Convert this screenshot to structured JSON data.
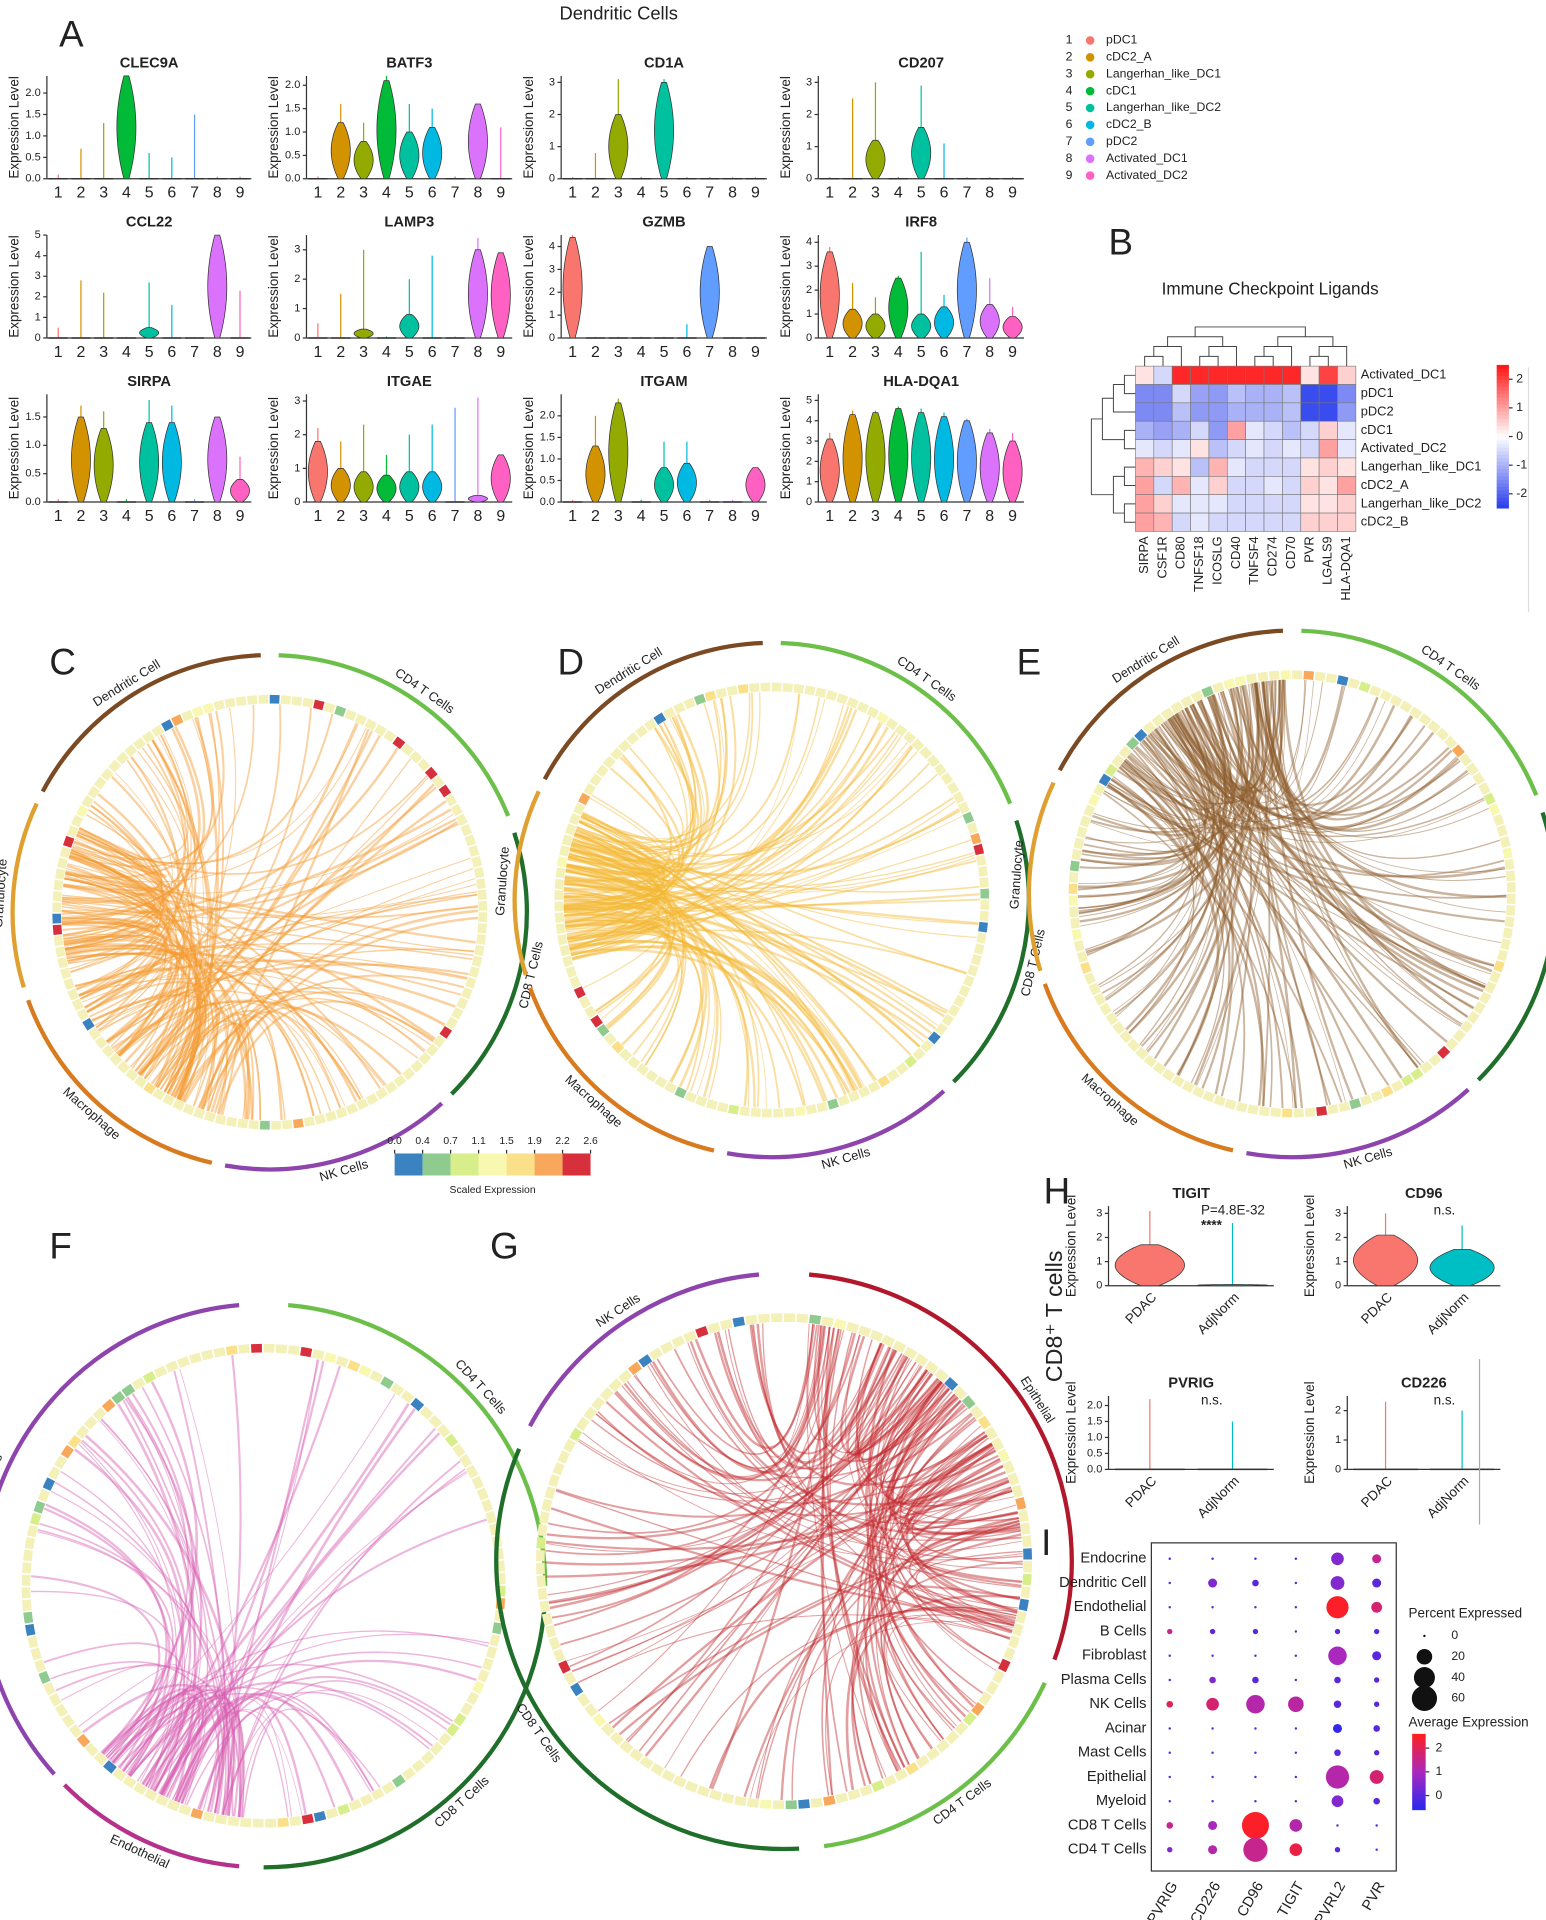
{
  "A": {
    "letter": "A",
    "title": "Dendritic Cells",
    "y_label": "Expression Level",
    "clusters": [
      "1",
      "2",
      "3",
      "4",
      "5",
      "6",
      "7",
      "8",
      "9"
    ],
    "legend": {
      "names": [
        "pDC1",
        "cDC2_A",
        "Langerhan_like_DC1",
        "cDC1",
        "Langerhan_like_DC2",
        "cDC2_B",
        "pDC2",
        "Activated_DC1",
        "Activated_DC2"
      ],
      "colors": [
        "#F8766D",
        "#D39200",
        "#93AA00",
        "#00BA38",
        "#00C19F",
        "#00B9E3",
        "#619CFF",
        "#DB72FB",
        "#FF61C3"
      ]
    },
    "genes": [
      {
        "name": "CLEC9A",
        "ylim": [
          0,
          2.4
        ],
        "yticks": [
          {
            "value": 0,
            "label": "0.0"
          },
          0.5,
          {
            "value": 1,
            "label": "1.0"
          },
          1.5,
          {
            "value": 2,
            "label": "2.0"
          }
        ],
        "max": [
          0.1,
          0.7,
          1.3,
          2.4,
          0.6,
          0.5,
          1.5,
          0.05,
          0.05
        ],
        "body": [
          0,
          0,
          0,
          2.4,
          0,
          0,
          0,
          0,
          0
        ]
      },
      {
        "name": "BATF3",
        "ylim": [
          0,
          2.2
        ],
        "yticks": [
          {
            "value": 0,
            "label": "0.0"
          },
          0.5,
          {
            "value": 1,
            "label": "1.0"
          },
          1.5,
          {
            "value": 2,
            "label": "2.0"
          }
        ],
        "max": [
          0.05,
          1.6,
          1.2,
          2.2,
          1.6,
          1.5,
          0.05,
          1.6,
          1.1
        ],
        "body": [
          0,
          1.2,
          0.8,
          2.1,
          1.0,
          1.1,
          0,
          1.6,
          0
        ]
      },
      {
        "name": "CD1A",
        "ylim": [
          0,
          3.2
        ],
        "yticks": [
          0,
          1,
          2,
          3
        ],
        "max": [
          0.05,
          0.8,
          3.1,
          0.05,
          3.1,
          0.05,
          0.05,
          0.05,
          0.05
        ],
        "body": [
          0,
          0,
          2.0,
          0,
          3.0,
          0,
          0,
          0,
          0
        ]
      },
      {
        "name": "CD207",
        "ylim": [
          0,
          3.2
        ],
        "yticks": [
          0,
          1,
          2,
          3
        ],
        "max": [
          0.05,
          2.5,
          3.0,
          0.05,
          2.9,
          1.1,
          0.05,
          0.05,
          0.05
        ],
        "body": [
          0,
          0,
          1.2,
          0,
          1.6,
          0,
          0,
          0,
          0
        ]
      },
      {
        "name": "CCL22",
        "ylim": [
          0,
          5
        ],
        "yticks": [
          0,
          1,
          2,
          3,
          4,
          5
        ],
        "max": [
          0.5,
          2.8,
          2.2,
          0.05,
          2.7,
          1.6,
          0.05,
          5,
          2.3
        ],
        "body": [
          0,
          0,
          0,
          0,
          0.5,
          0,
          0,
          5,
          0
        ]
      },
      {
        "name": "LAMP3",
        "ylim": [
          0,
          3.5
        ],
        "yticks": [
          0,
          1,
          2,
          3
        ],
        "max": [
          0.5,
          1.5,
          3.0,
          0.05,
          2.0,
          2.8,
          0.05,
          3.4,
          2.9
        ],
        "body": [
          0,
          0,
          0.3,
          0,
          0.8,
          0,
          0,
          3.0,
          2.9
        ]
      },
      {
        "name": "GZMB",
        "ylim": [
          0,
          4.5
        ],
        "yticks": [
          0,
          1,
          2,
          3,
          4
        ],
        "max": [
          4.5,
          0.05,
          0.05,
          0.05,
          0.05,
          0.6,
          4.0,
          0.05,
          0.05
        ],
        "body": [
          4.4,
          0,
          0,
          0,
          0,
          0,
          4.0,
          0,
          0
        ]
      },
      {
        "name": "IRF8",
        "ylim": [
          0,
          4.3
        ],
        "yticks": [
          0,
          1,
          2,
          3,
          4
        ],
        "max": [
          3.8,
          2.3,
          1.7,
          2.6,
          3.6,
          1.8,
          4.2,
          2.5,
          1.3
        ],
        "body": [
          3.6,
          1.2,
          1.0,
          2.5,
          1.0,
          1.3,
          4.0,
          1.4,
          0.9
        ]
      },
      {
        "name": "SIRPA",
        "ylim": [
          0,
          1.9
        ],
        "yticks": [
          {
            "value": 0,
            "label": "0.0"
          },
          0.5,
          {
            "value": 1,
            "label": "1.0"
          },
          1.5
        ],
        "max": [
          0.05,
          1.7,
          1.6,
          0.05,
          1.8,
          1.7,
          0.05,
          1.5,
          0.8
        ],
        "body": [
          0,
          1.5,
          1.3,
          0,
          1.4,
          1.4,
          0,
          1.5,
          0.4
        ]
      },
      {
        "name": "ITGAE",
        "ylim": [
          0,
          3.2
        ],
        "yticks": [
          0,
          1,
          2,
          3
        ],
        "max": [
          2.2,
          1.8,
          2.3,
          1.4,
          2.0,
          2.3,
          2.8,
          3.1,
          1.4
        ],
        "body": [
          1.8,
          1.0,
          0.9,
          0.8,
          0.9,
          0.9,
          0,
          0.2,
          1.4
        ]
      },
      {
        "name": "ITGAM",
        "ylim": [
          0,
          2.5
        ],
        "yticks": [
          {
            "value": 0,
            "label": "0.0"
          },
          0.5,
          {
            "value": 1,
            "label": "1.0"
          },
          1.5,
          {
            "value": 2,
            "label": "2.0"
          }
        ],
        "max": [
          0.05,
          2.0,
          2.4,
          0.05,
          1.4,
          1.4,
          0.05,
          0.05,
          0.8
        ],
        "body": [
          0,
          1.3,
          2.3,
          0,
          0.8,
          0.9,
          0,
          0,
          0.8
        ]
      },
      {
        "name": "HLA-DQA1",
        "ylim": [
          0,
          5.3
        ],
        "yticks": [
          0,
          1,
          2,
          3,
          4,
          5
        ],
        "max": [
          3.4,
          4.5,
          4.5,
          4.7,
          4.6,
          4.4,
          4.1,
          3.6,
          3.4
        ],
        "body": [
          3.1,
          4.3,
          4.4,
          4.6,
          4.4,
          4.2,
          4.0,
          3.4,
          3.0
        ]
      }
    ]
  },
  "B": {
    "letter": "B",
    "title": "Immune Checkpoint Ligands",
    "rows": [
      "Activated_DC1",
      "pDC1",
      "pDC2",
      "cDC1",
      "Activated_DC2",
      "Langerhan_like_DC1",
      "cDC2_A",
      "Langerhan_like_DC2",
      "cDC2_B"
    ],
    "cols": [
      "SIRPA",
      "CSF1R",
      "CD80",
      "TNFSF18",
      "ICOSLG",
      "CD40",
      "TNFSF4",
      "CD274",
      "CD70",
      "PVR",
      "LGALS9",
      "HLA-DQA1"
    ],
    "values": [
      [
        0.3,
        -0.5,
        2.3,
        2.3,
        2.3,
        2.3,
        2.3,
        2.3,
        2.3,
        0.3,
        2.0,
        0.5
      ],
      [
        -1.5,
        -1.5,
        -0.5,
        -1.2,
        -1.3,
        -0.8,
        -1.0,
        -1.0,
        -0.8,
        -2.3,
        -2.3,
        -1.5
      ],
      [
        -1.5,
        -1.5,
        -0.8,
        -1.3,
        -1.3,
        -1.0,
        -1.0,
        -1.0,
        -0.8,
        -2.3,
        -2.3,
        -1.3
      ],
      [
        -1.0,
        -1.2,
        -1.0,
        -0.5,
        -1.3,
        1.0,
        -0.3,
        -0.5,
        -0.8,
        -0.5,
        0.5,
        -0.3
      ],
      [
        -0.3,
        -0.5,
        -0.3,
        0.3,
        -0.8,
        -0.5,
        -0.3,
        -0.5,
        -0.3,
        -0.5,
        1.0,
        -0.3
      ],
      [
        0.8,
        0.5,
        0.3,
        -0.8,
        0.8,
        -0.3,
        -0.5,
        -0.5,
        -0.5,
        0.3,
        0.5,
        0.3
      ],
      [
        1.0,
        -0.5,
        0.8,
        -0.3,
        0.5,
        -0.5,
        -0.5,
        -0.3,
        -0.5,
        0.5,
        0.3,
        1.0
      ],
      [
        1.0,
        0.5,
        -0.3,
        -0.3,
        -0.3,
        -0.5,
        -0.5,
        -0.5,
        -0.5,
        0.3,
        0.3,
        0.5
      ],
      [
        1.0,
        0.8,
        -0.5,
        -0.3,
        -0.5,
        -0.5,
        -0.5,
        -0.5,
        -0.5,
        0.5,
        0.5,
        0.5
      ]
    ],
    "range": [
      -2.5,
      2.5
    ],
    "ticks": [
      2,
      1,
      0,
      -1,
      -2
    ]
  },
  "chords": [
    {
      "letter": "C",
      "link_color": "#F39A2E",
      "segments": [
        {
          "name": "Dendritic Cell",
          "color": "#7B4A23"
        },
        {
          "name": "CD4 T Cells",
          "color": "#6CC04A"
        },
        {
          "name": "CD8 T Cells",
          "color": "#1F6E2A"
        },
        {
          "name": "NK Cells",
          "color": "#8E44AD"
        },
        {
          "name": "Macrophage",
          "color": "#D97A1E"
        },
        {
          "name": "Granulocyte",
          "color": "#E0A030"
        }
      ]
    },
    {
      "letter": "D",
      "link_color": "#F5B934",
      "segments": [
        {
          "name": "Dendritic Cell",
          "color": "#7B4A23"
        },
        {
          "name": "CD4 T Cells",
          "color": "#6CC04A"
        },
        {
          "name": "CD8 T Cells",
          "color": "#1F6E2A"
        },
        {
          "name": "NK Cells",
          "color": "#8E44AD"
        },
        {
          "name": "Macrophage",
          "color": "#D97A1E"
        },
        {
          "name": "Granulocyte",
          "color": "#E0A030"
        }
      ]
    },
    {
      "letter": "E",
      "link_color": "#8B5A2B",
      "segments": [
        {
          "name": "Dendritic Cell",
          "color": "#7B4A23"
        },
        {
          "name": "CD4 T Cells",
          "color": "#6CC04A"
        },
        {
          "name": "CD8 T Cells",
          "color": "#1F6E2A"
        },
        {
          "name": "NK Cells",
          "color": "#8E44AD"
        },
        {
          "name": "Macrophage",
          "color": "#D97A1E"
        },
        {
          "name": "Granulocyte",
          "color": "#E0A030"
        }
      ]
    },
    {
      "letter": "F",
      "link_color": "#D65DB1",
      "segments": [
        {
          "name": "NK Cells",
          "color": "#8E44AD"
        },
        {
          "name": "CD4 T Cells",
          "color": "#6CC04A"
        },
        {
          "name": "CD8 T Cells",
          "color": "#1F6E2A"
        },
        {
          "name": "Endothelial",
          "color": "#B5318C"
        }
      ]
    },
    {
      "letter": "G",
      "link_color": "#C0282D",
      "segments": [
        {
          "name": "NK Cells",
          "color": "#8E44AD"
        },
        {
          "name": "Epithelial",
          "color": "#B2182B"
        },
        {
          "name": "CD4 T Cells",
          "color": "#6CC04A"
        },
        {
          "name": "CD8 T Cells",
          "color": "#1F6E2A"
        }
      ]
    }
  ],
  "scale": {
    "title": "Scaled Expression",
    "ticks": [
      {
        "value": 0,
        "label": "0.0"
      },
      0.4,
      0.7,
      1.1,
      1.5,
      1.9,
      2.2,
      2.6
    ],
    "colors": [
      "#3A82C0",
      "#8FCB8F",
      "#D8EE8A",
      "#F8F8B0",
      "#FBE08A",
      "#F7A85A",
      "#D7303C"
    ]
  },
  "H": {
    "letter": "H",
    "side_label": "CD8⁺ T cells",
    "y_label": "Expression Level",
    "groups": [
      "PDAC",
      "AdjNorm"
    ],
    "colors": [
      "#F8766D",
      "#00BFC4"
    ],
    "genes": [
      {
        "name": "TIGIT",
        "ylim": [
          0,
          3.3
        ],
        "yticks": [
          0,
          1,
          2,
          3
        ],
        "max": [
          3.1,
          2.6
        ],
        "body": [
          1.7,
          0.05
        ],
        "annotation": "P=4.8E-32",
        "stars": "****"
      },
      {
        "name": "CD96",
        "ylim": [
          0,
          3.3
        ],
        "yticks": [
          0,
          1,
          2,
          3
        ],
        "max": [
          3.0,
          2.5
        ],
        "body": [
          2.1,
          1.5
        ],
        "annotation": "n.s."
      },
      {
        "name": "PVRIG",
        "ylim": [
          0,
          2.3
        ],
        "yticks": [
          {
            "value": 0,
            "label": "0.0"
          },
          0.5,
          {
            "value": 1,
            "label": "1.0"
          },
          1.5,
          {
            "value": 2,
            "label": "2.0"
          }
        ],
        "max": [
          2.2,
          1.5
        ],
        "body": [
          0,
          0
        ],
        "annotation": "n.s."
      },
      {
        "name": "CD226",
        "ylim": [
          0,
          2.5
        ],
        "yticks": [
          0,
          1,
          2
        ],
        "max": [
          2.3,
          2.0
        ],
        "body": [
          0,
          0
        ],
        "annotation": "n.s."
      }
    ]
  },
  "I": {
    "letter": "I",
    "rows": [
      "Endocrine",
      "Dendritic Cell",
      "Endothelial",
      "B Cells",
      "Fibroblast",
      "Plasma Cells",
      "NK Cells",
      "Acinar",
      "Mast Cells",
      "Epithelial",
      "Myeloid",
      "CD8 T Cells",
      "CD4 T Cells"
    ],
    "cols": [
      "PVRIG",
      "CD226",
      "CD96",
      "TIGIT",
      "PVRL2",
      "PVR"
    ],
    "percent": [
      [
        0,
        0,
        0,
        0,
        12,
        5
      ],
      [
        0,
        5,
        2,
        0,
        15,
        5
      ],
      [
        0,
        0,
        0,
        0,
        45,
        8
      ],
      [
        1,
        1,
        1,
        0,
        1,
        1
      ],
      [
        0,
        0,
        0,
        0,
        30,
        5
      ],
      [
        0,
        2,
        2,
        0,
        2,
        1
      ],
      [
        2,
        12,
        30,
        20,
        3,
        1
      ],
      [
        0,
        0,
        0,
        0,
        5,
        2
      ],
      [
        0,
        0,
        0,
        0,
        2,
        1
      ],
      [
        0,
        0,
        0,
        0,
        50,
        15
      ],
      [
        0,
        0,
        0,
        0,
        10,
        2
      ],
      [
        2,
        5,
        70,
        12,
        0,
        0
      ],
      [
        1,
        5,
        55,
        12,
        1,
        0
      ]
    ],
    "average": [
      [
        -0.3,
        -0.3,
        -0.3,
        -0.3,
        0.5,
        1.5
      ],
      [
        0,
        0.5,
        0,
        0,
        0.5,
        0
      ],
      [
        0,
        0,
        0,
        0,
        2.5,
        1.8
      ],
      [
        1.5,
        0,
        0,
        0,
        0,
        0
      ],
      [
        0,
        0,
        0,
        0,
        1.0,
        0
      ],
      [
        0,
        0.5,
        0,
        0,
        0,
        0
      ],
      [
        2,
        1.8,
        1.2,
        1.3,
        0,
        0
      ],
      [
        0,
        0,
        0,
        0,
        -0.5,
        0
      ],
      [
        0,
        0,
        0,
        0,
        0,
        0
      ],
      [
        0,
        0,
        0,
        0,
        1.2,
        1.8
      ],
      [
        0,
        0,
        0,
        0,
        0.5,
        0
      ],
      [
        1.5,
        1,
        2.5,
        1.2,
        0,
        0
      ],
      [
        0.5,
        1.2,
        1.5,
        2.2,
        0,
        0
      ]
    ],
    "size_title": "Percent Expressed",
    "size_ticks": [
      0,
      20,
      40,
      60
    ],
    "color_title": "Average Expression",
    "color_range": [
      -0.6,
      2.6
    ],
    "color_ticks": [
      2,
      1,
      0
    ]
  }
}
